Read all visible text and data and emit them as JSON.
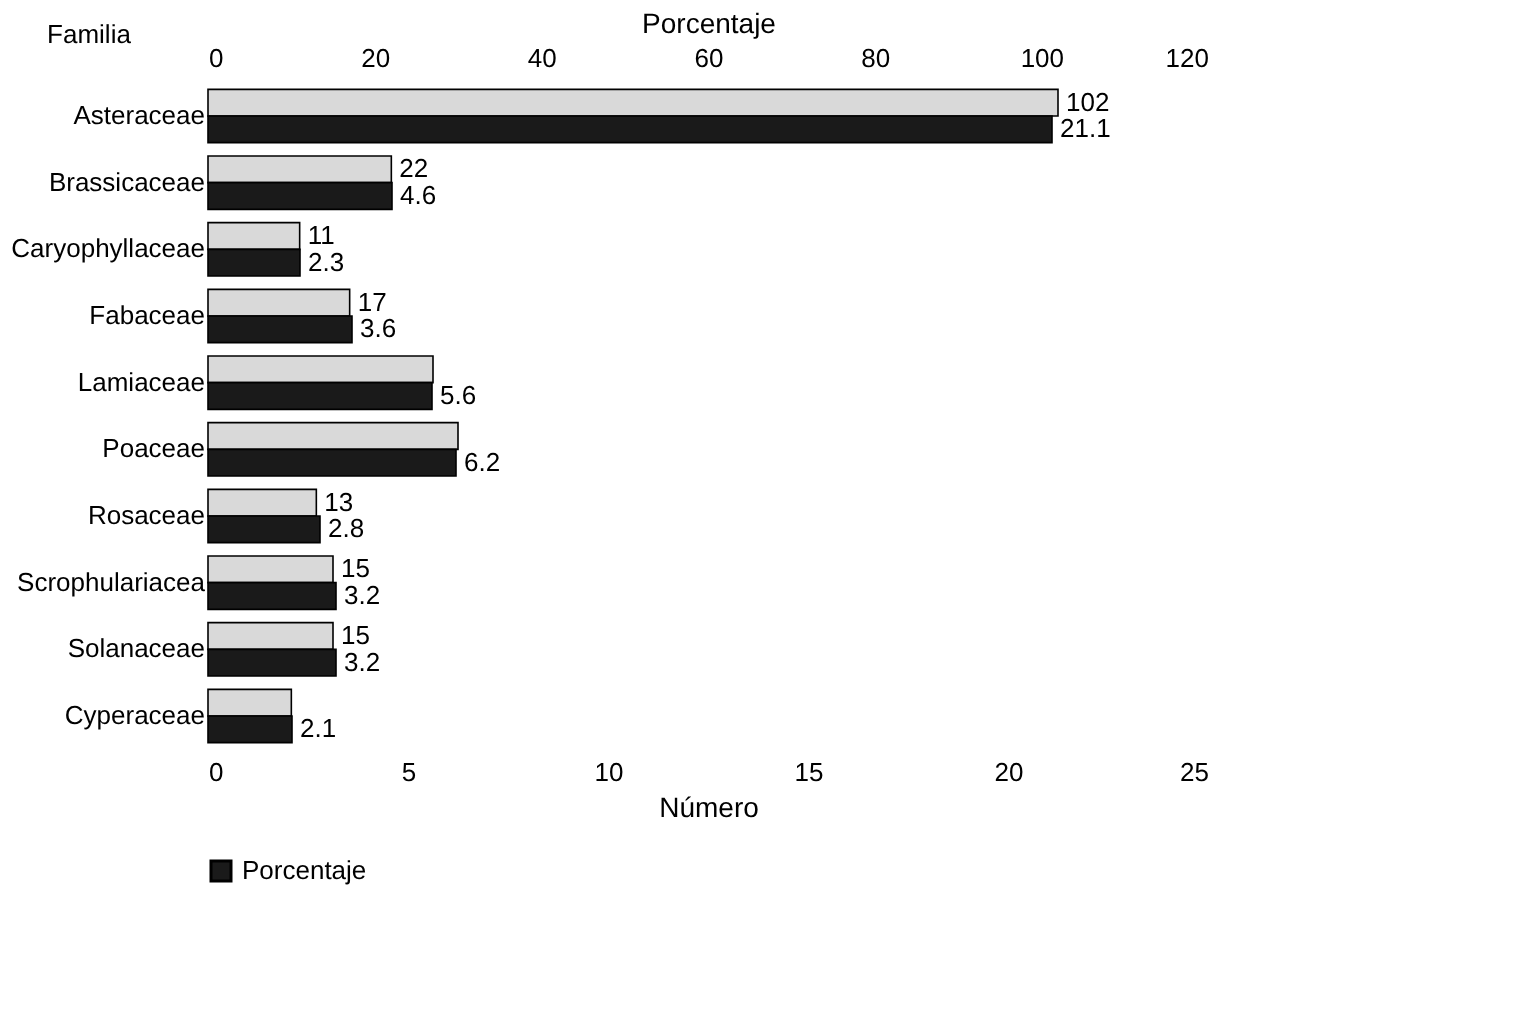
{
  "chart_data": {
    "type": "bar",
    "orientation": "horizontal",
    "xlabel": "Número",
    "x2label": "Porcentaje",
    "ylabel": "Familia",
    "categories": [
      "Asteraceae",
      "Brassicaceae",
      "Caryophyllaceae",
      "Fabaceae",
      "Lamiaceae",
      "Poaceae",
      "Rosaceae",
      "Scrophulariacea",
      "Solanaceae",
      "Cyperaceae"
    ],
    "xlim": [
      0,
      25
    ],
    "xticks": [
      0,
      5,
      10,
      15,
      20,
      25
    ],
    "x2lim": [
      0,
      120
    ],
    "x2ticks": [
      0,
      20,
      40,
      60,
      80,
      100,
      120
    ],
    "series": [
      {
        "axis": "x2",
        "color": "#d9d9d9",
        "values": [
          102,
          22,
          11,
          17,
          27,
          30,
          13,
          15,
          15,
          10
        ],
        "value_labels": [
          "102",
          "22",
          "11",
          "17",
          null,
          null,
          "13",
          "15",
          "15",
          null
        ]
      },
      {
        "name": "Porcentaje",
        "color": "#1a1a1a",
        "values": [
          21.1,
          4.6,
          2.3,
          3.6,
          5.6,
          6.2,
          2.8,
          3.2,
          3.2,
          2.1
        ],
        "value_labels": [
          "21.1",
          "4.6",
          "2.3",
          "3.6",
          "5.6",
          "6.2",
          "2.8",
          "3.2",
          "3.2",
          "2.1"
        ]
      }
    ],
    "grid": false,
    "legend": "bottom"
  }
}
